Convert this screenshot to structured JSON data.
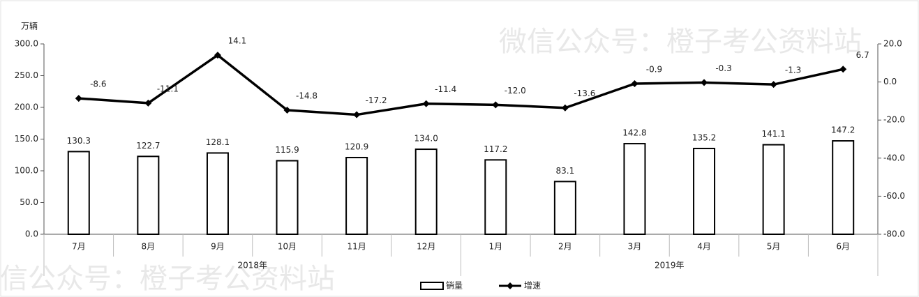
{
  "chart_data": {
    "type": "bar-line",
    "unit_label": "万辆",
    "watermark": "微信公众号：橙子考公资料站",
    "groups": [
      {
        "label": "2018年",
        "categories": [
          "7月",
          "8月",
          "9月",
          "10月",
          "11月",
          "12月"
        ]
      },
      {
        "label": "2019年",
        "categories": [
          "1月",
          "2月",
          "3月",
          "4月",
          "5月",
          "6月"
        ]
      }
    ],
    "series": [
      {
        "name": "销量",
        "type": "bar",
        "color": "#ffffff",
        "edgecolor": "#000000",
        "values": [
          130.3,
          122.7,
          128.1,
          115.9,
          120.9,
          134.0,
          117.2,
          83.1,
          142.8,
          135.2,
          141.1,
          147.2
        ],
        "value_labels": [
          "130.3",
          "122.7",
          "128.1",
          "115.9",
          "120.9",
          "134.0",
          "117.2",
          "83.1",
          "142.8",
          "135.2",
          "141.1",
          "147.2"
        ]
      },
      {
        "name": "增速",
        "type": "line",
        "axis": "y2",
        "color": "#000000",
        "marker": "diamond",
        "values": [
          -8.6,
          -11.1,
          14.1,
          -14.8,
          -17.2,
          -11.4,
          -12.0,
          -13.6,
          -0.9,
          -0.3,
          -1.3,
          6.7
        ],
        "value_labels": [
          "-8.6",
          "-11.1",
          "14.1",
          "-14.8",
          "-17.2",
          "-11.4",
          "-12.0",
          "-13.6",
          "-0.9",
          "-0.3",
          "-1.3",
          "6.7"
        ]
      }
    ],
    "ylim": [
      0,
      300
    ],
    "yticks": [
      {
        "value": 0,
        "label": "0.0"
      },
      {
        "value": 50,
        "label": "50.0"
      },
      {
        "value": 100,
        "label": "100.0"
      },
      {
        "value": 150,
        "label": "150.0"
      },
      {
        "value": 200,
        "label": "200.0"
      },
      {
        "value": 250,
        "label": "250.0"
      },
      {
        "value": 300,
        "label": "300.0"
      }
    ],
    "y2lim": [
      -80,
      20
    ],
    "y2ticks": [
      {
        "value": -80,
        "label": "-80.0"
      },
      {
        "value": -60,
        "label": "-60.0"
      },
      {
        "value": -40,
        "label": "-40.0"
      },
      {
        "value": -20,
        "label": "-20.0"
      },
      {
        "value": 0,
        "label": "0.0"
      },
      {
        "value": 20,
        "label": "20.0"
      }
    ],
    "grid": false,
    "legend": "bottom"
  }
}
